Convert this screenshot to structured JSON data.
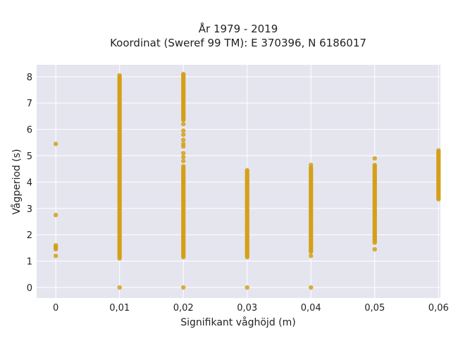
{
  "chart_data": {
    "type": "scatter",
    "title_line1": "År 1979 - 2019",
    "title_line2": "Koordinat (Sweref 99 TM): E 370396, N 6186017",
    "xlabel": "Signifikant våghöjd (m)",
    "ylabel": "Vågperiod (s)",
    "x_ticks": [
      {
        "value": 0,
        "label": "0"
      },
      {
        "value": 0.01,
        "label": "0,01"
      },
      {
        "value": 0.02,
        "label": "0,02"
      },
      {
        "value": 0.03,
        "label": "0,03"
      },
      {
        "value": 0.04,
        "label": "0,04"
      },
      {
        "value": 0.05,
        "label": "0,05"
      },
      {
        "value": 0.06,
        "label": "0,06"
      }
    ],
    "y_ticks": [
      0,
      1,
      2,
      3,
      4,
      5,
      6,
      7,
      8
    ],
    "xlim": [
      -0.003,
      0.0603
    ],
    "ylim": [
      -0.4,
      8.45
    ],
    "grid": true,
    "marker_color": "#D4A017",
    "plot_bg": "#E5E5EF",
    "points": [
      {
        "x": 0,
        "y": 5.45
      },
      {
        "x": 0,
        "y": 2.75
      },
      {
        "x": 0,
        "y": 1.6
      },
      {
        "x": 0,
        "y": 1.55
      },
      {
        "x": 0,
        "y": 1.5
      },
      {
        "x": 0,
        "y": 1.45
      },
      {
        "x": 0,
        "y": 1.2
      },
      {
        "x": 0.01,
        "y": 0
      },
      {
        "x": 0.02,
        "y": 0
      },
      {
        "x": 0.03,
        "y": 0
      },
      {
        "x": 0.04,
        "y": 0
      },
      {
        "x": 0.04,
        "y": 1.2
      },
      {
        "x": 0.05,
        "y": 4.9
      },
      {
        "x": 0.05,
        "y": 1.45
      },
      {
        "x": 0.02,
        "y": 6.2
      },
      {
        "x": 0.02,
        "y": 5.95
      },
      {
        "x": 0.02,
        "y": 5.8
      },
      {
        "x": 0.02,
        "y": 5.6
      },
      {
        "x": 0.02,
        "y": 5.45
      },
      {
        "x": 0.02,
        "y": 5.35
      },
      {
        "x": 0.02,
        "y": 5.1
      },
      {
        "x": 0.02,
        "y": 4.95
      },
      {
        "x": 0.02,
        "y": 4.8
      },
      {
        "x": 0.04,
        "y": 4.65
      }
    ],
    "dense_ranges": [
      {
        "x": 0.01,
        "y_min": 1.1,
        "y_max": 8.05
      },
      {
        "x": 0.02,
        "y_min": 6.35,
        "y_max": 8.1
      },
      {
        "x": 0.02,
        "y_min": 1.15,
        "y_max": 4.6
      },
      {
        "x": 0.03,
        "y_min": 1.15,
        "y_max": 4.45
      },
      {
        "x": 0.04,
        "y_min": 1.35,
        "y_max": 4.55
      },
      {
        "x": 0.05,
        "y_min": 1.7,
        "y_max": 4.65
      },
      {
        "x": 0.06,
        "y_min": 3.35,
        "y_max": 5.2
      }
    ]
  }
}
